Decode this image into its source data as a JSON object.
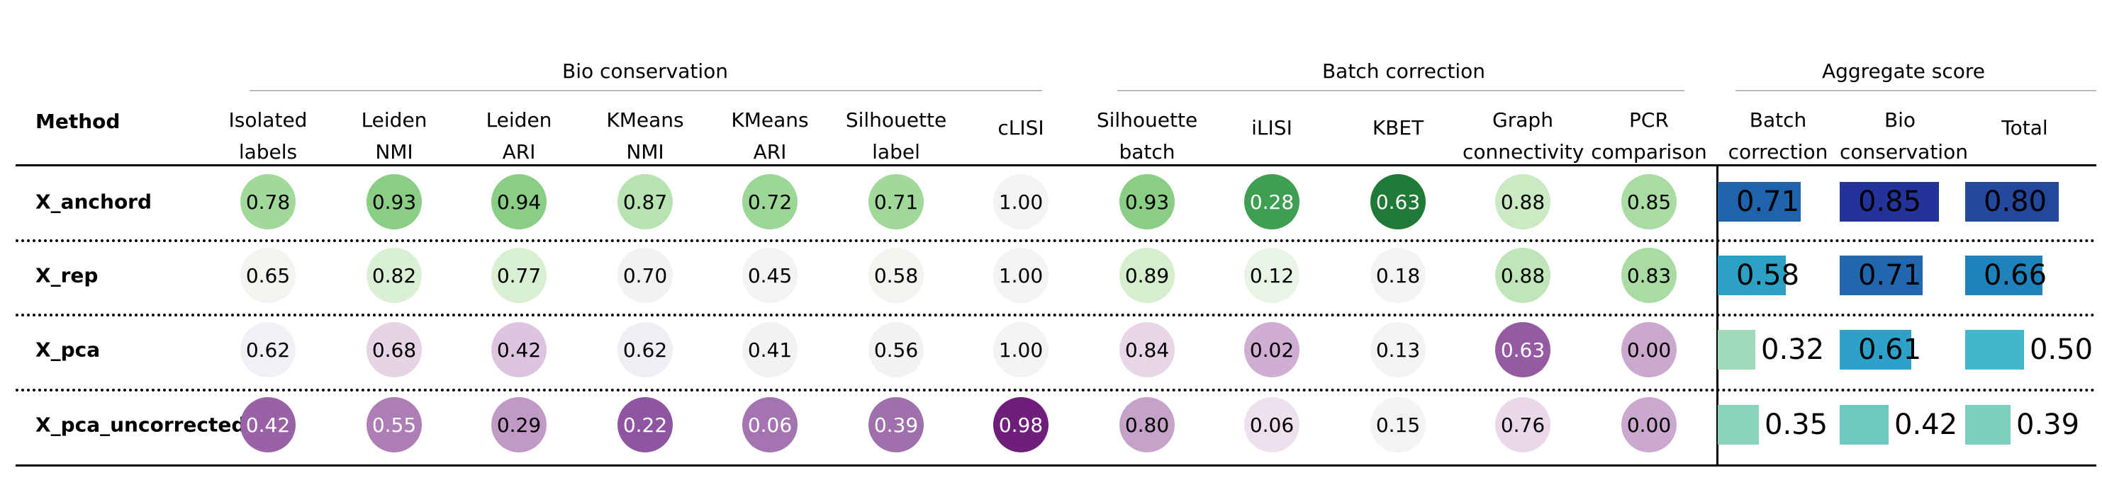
{
  "chart_data": {
    "type": "table",
    "groups": [
      {
        "name": "Bio conservation"
      },
      {
        "name": "Batch correction"
      },
      {
        "name": "Aggregate score"
      }
    ],
    "method_header": "Method",
    "columns": [
      {
        "label": [
          "Isolated",
          "labels"
        ],
        "kind": "circle",
        "group": 0
      },
      {
        "label": [
          "Leiden",
          "NMI"
        ],
        "kind": "circle",
        "group": 0
      },
      {
        "label": [
          "Leiden",
          "ARI"
        ],
        "kind": "circle",
        "group": 0
      },
      {
        "label": [
          "KMeans",
          "NMI"
        ],
        "kind": "circle",
        "group": 0
      },
      {
        "label": [
          "KMeans",
          "ARI"
        ],
        "kind": "circle",
        "group": 0
      },
      {
        "label": [
          "Silhouette",
          "label"
        ],
        "kind": "circle",
        "group": 0
      },
      {
        "label": [
          "cLISI"
        ],
        "kind": "circle",
        "group": 0
      },
      {
        "label": [
          "Silhouette",
          "batch"
        ],
        "kind": "circle",
        "group": 1
      },
      {
        "label": [
          "iLISI"
        ],
        "kind": "circle",
        "group": 1
      },
      {
        "label": [
          "KBET"
        ],
        "kind": "circle",
        "group": 1
      },
      {
        "label": [
          "Graph",
          "connectivity"
        ],
        "kind": "circle",
        "group": 1
      },
      {
        "label": [
          "PCR",
          "comparison"
        ],
        "kind": "circle",
        "group": 1
      },
      {
        "label": [
          "Batch",
          "correction"
        ],
        "kind": "bar",
        "group": 2
      },
      {
        "label": [
          "Bio",
          "conservation"
        ],
        "kind": "bar",
        "group": 2
      },
      {
        "label": [
          "Total"
        ],
        "kind": "bar",
        "group": 2
      }
    ],
    "rows": [
      {
        "method": "X_anchord",
        "values": [
          "0.78",
          "0.93",
          "0.94",
          "0.87",
          "0.72",
          "0.71",
          "1.00",
          "0.93",
          "0.28",
          "0.63",
          "0.88",
          "0.85",
          "0.71",
          "0.85",
          "0.80"
        ],
        "colors": [
          "#a1d99b",
          "#8acd85",
          "#8acd85",
          "#b7e2b1",
          "#9cd797",
          "#a1d99b",
          "#f3f3f3",
          "#8acd85",
          "#3e9e52",
          "#1f7a37",
          "#caeac3",
          "#a8dca2",
          "#1f63ad",
          "#24339a",
          "#23489c"
        ]
      },
      {
        "method": "X_rep",
        "values": [
          "0.65",
          "0.82",
          "0.77",
          "0.70",
          "0.45",
          "0.58",
          "1.00",
          "0.89",
          "0.12",
          "0.18",
          "0.88",
          "0.83",
          "0.58",
          "0.71",
          "0.66"
        ],
        "colors": [
          "#f1f4ef",
          "#daf0d4",
          "#d8efd2",
          "#f2f2f2",
          "#f3f2f4",
          "#f1f4ef",
          "#f3f3f3",
          "#d5eece",
          "#e9f5e4",
          "#f3f2f4",
          "#bfe5b8",
          "#a8dca2",
          "#2da0c6",
          "#2167ae",
          "#1f82ba"
        ]
      },
      {
        "method": "X_pca",
        "values": [
          "0.62",
          "0.68",
          "0.42",
          "0.62",
          "0.41",
          "0.56",
          "1.00",
          "0.84",
          "0.02",
          "0.13",
          "0.63",
          "0.00",
          "0.32",
          "0.61",
          "0.50"
        ],
        "colors": [
          "#f2f0f5",
          "#e7d3e6",
          "#dec5df",
          "#f0edf3",
          "#f4f1f5",
          "#f3f1f4",
          "#f3f3f3",
          "#e8d6e8",
          "#cfaed2",
          "#f3f2f4",
          "#945aa2",
          "#cba9ce",
          "#9ed9b9",
          "#2ea1c8",
          "#44b6c9"
        ]
      },
      {
        "method": "X_pca_uncorrected",
        "values": [
          "0.42",
          "0.55",
          "0.29",
          "0.22",
          "0.06",
          "0.39",
          "0.98",
          "0.80",
          "0.06",
          "0.15",
          "0.76",
          "0.00",
          "0.35",
          "0.42",
          "0.39"
        ],
        "colors": [
          "#9a62a6",
          "#ad7eb5",
          "#c09ac5",
          "#8e56a0",
          "#a474b0",
          "#a070ad",
          "#6e1f7a",
          "#c5a3c9",
          "#efe0ee",
          "#f3f2f4",
          "#ead8ea",
          "#cba9ce",
          "#8cd3bc",
          "#6ec8be",
          "#7ccfbf"
        ]
      }
    ]
  }
}
